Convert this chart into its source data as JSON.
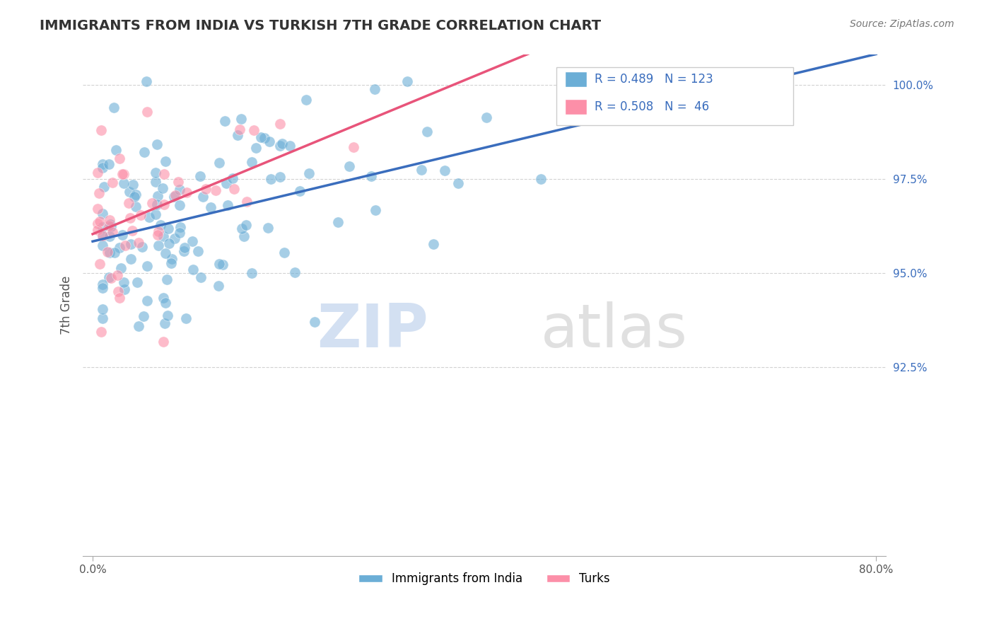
{
  "title": "IMMIGRANTS FROM INDIA VS TURKISH 7TH GRADE CORRELATION CHART",
  "source": "Source: ZipAtlas.com",
  "xlabel": "",
  "ylabel": "7th Grade",
  "xlim": [
    0.0,
    0.8
  ],
  "ylim": [
    0.875,
    1.008
  ],
  "xticks": [
    0.0,
    0.8
  ],
  "xticklabels": [
    "0.0%",
    "80.0%"
  ],
  "yticks": [
    0.925,
    0.95,
    0.975,
    1.0
  ],
  "yticklabels": [
    "92.5%",
    "95.0%",
    "97.5%",
    "100.0%"
  ],
  "blue_color": "#6baed6",
  "pink_color": "#fc8fa8",
  "trend_blue": "#3a6dbd",
  "trend_pink": "#e8547a",
  "legend_R_blue": "R = 0.489",
  "legend_N_blue": "N = 123",
  "legend_R_pink": "R = 0.508",
  "legend_N_pink": "N =  46",
  "legend_label_blue": "Immigrants from India",
  "legend_label_pink": "Turks",
  "watermark_zip": "ZIP",
  "watermark_atlas": "atlas",
  "grid_color": "#c0c0c0",
  "text_color": "#3a6dbd"
}
